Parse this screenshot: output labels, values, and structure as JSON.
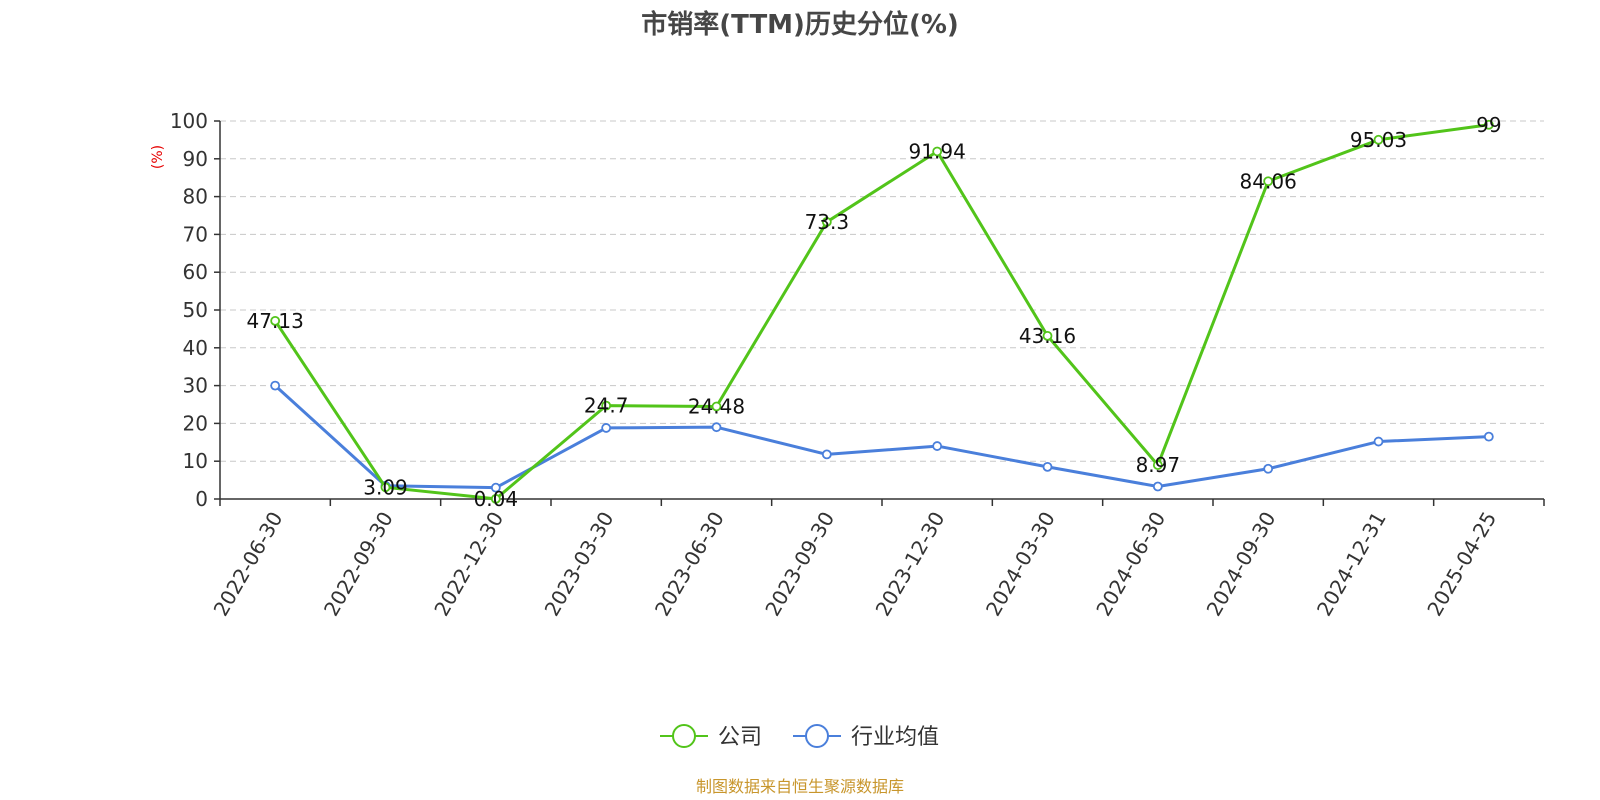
{
  "chart_data": {
    "type": "line",
    "title": "市销率(TTM)历史分位(%)",
    "ylabel": "(%)",
    "xlabel": "",
    "ylim": [
      0,
      100
    ],
    "yticks": [
      0,
      10,
      20,
      30,
      40,
      50,
      60,
      70,
      80,
      90,
      100
    ],
    "grid": true,
    "legend_position": "bottom-center",
    "categories": [
      "2022-06-30",
      "2022-09-30",
      "2022-12-30",
      "2023-03-30",
      "2023-06-30",
      "2023-09-30",
      "2023-12-30",
      "2024-03-30",
      "2024-06-30",
      "2024-09-30",
      "2024-12-31",
      "2025-04-25"
    ],
    "series": [
      {
        "name": "公司",
        "color": "#52c41a",
        "values": [
          47.13,
          3.09,
          0.04,
          24.7,
          24.48,
          73.3,
          91.94,
          43.16,
          8.97,
          84.06,
          95.03,
          99
        ],
        "labels": [
          "47.13",
          "3.09",
          "0.04",
          "24.7",
          "24.48",
          "73.3",
          "91.94",
          "43.16",
          "8.97",
          "84.06",
          "95.03",
          "99"
        ]
      },
      {
        "name": "行业均值",
        "color": "#4a7fdb",
        "values": [
          30,
          3.5,
          3,
          18.8,
          19,
          11.8,
          14,
          8.5,
          3.3,
          8,
          15.2,
          16.5
        ]
      }
    ],
    "source": "制图数据来自恒生聚源数据库"
  }
}
